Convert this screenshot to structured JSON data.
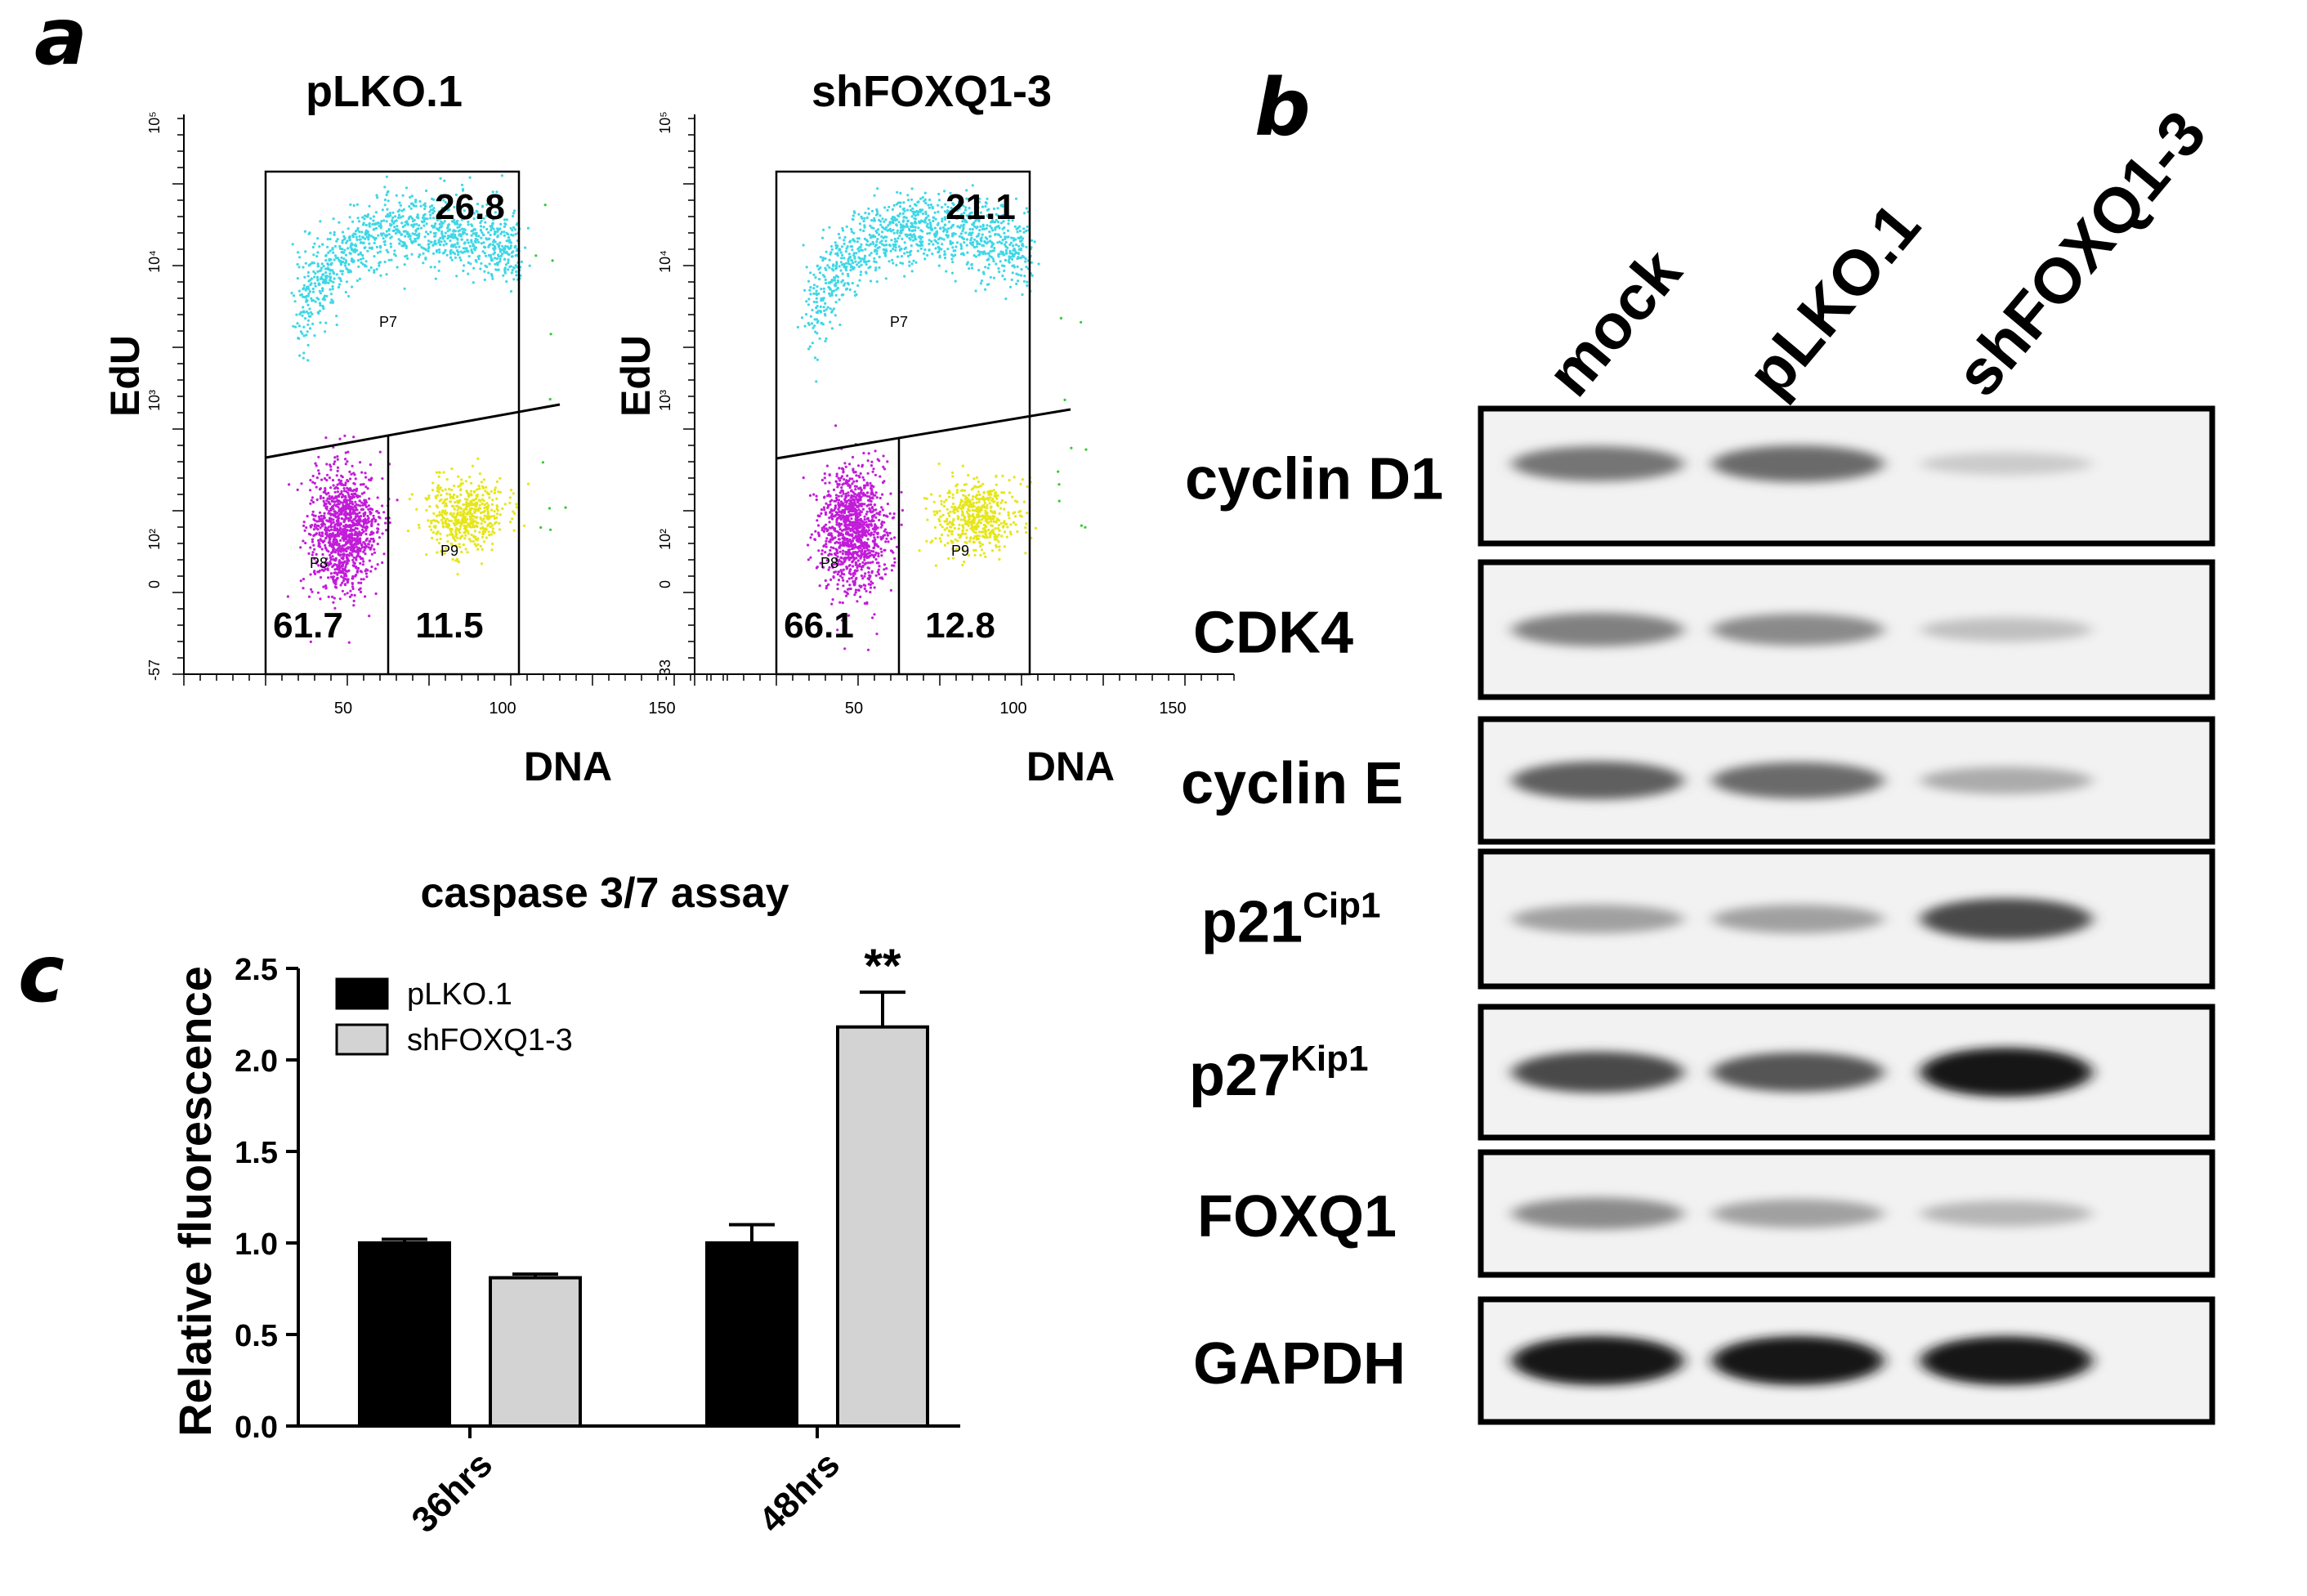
{
  "panel_labels": {
    "a": "a",
    "b": "b",
    "c": "c"
  },
  "flow": {
    "plots": [
      {
        "title": "pLKO.1",
        "xlabel": "DNA",
        "ylabel": "EdU",
        "x_ticks": [
          "50",
          "100",
          "150"
        ],
        "y_ticks": [
          "-57",
          "0",
          "10²",
          "10³",
          "10⁴",
          "10⁵"
        ],
        "gates": {
          "p7": "P7",
          "p8": "P8",
          "p9": "P9"
        },
        "percentages": {
          "edu_positive": "26.8",
          "g1": "61.7",
          "g2m": "11.5"
        },
        "boundary_y_left": 2.4,
        "boundary_y_right": 2.85,
        "divider_x": 70
      },
      {
        "title": "shFOXQ1-3",
        "xlabel": "DNA",
        "ylabel": "EdU",
        "x_ticks": [
          "50",
          "100",
          "150"
        ],
        "y_ticks": [
          "-33",
          "0",
          "10²",
          "10³",
          "10⁴",
          "10⁵"
        ],
        "gates": {
          "p7": "P7",
          "p8": "P8",
          "p9": "P9"
        },
        "percentages": {
          "edu_positive": "21.1",
          "g1": "66.1",
          "g2m": "12.8"
        },
        "boundary_y_left": 2.35,
        "boundary_y_right": 2.75,
        "divider_x": 70
      }
    ],
    "colors": {
      "edu": "#3fd7e6",
      "g1": "#c21cd9",
      "g2m": "#e6e61a",
      "outlier": "#33cc33"
    }
  },
  "western": {
    "lanes": [
      "mock",
      "pLKO.1",
      "shFOXQ1-3"
    ],
    "blots": [
      {
        "name": "cyclin D1",
        "sup": "",
        "intensity": [
          0.55,
          0.6,
          0.15
        ]
      },
      {
        "name": "CDK4",
        "sup": "",
        "intensity": [
          0.5,
          0.45,
          0.2
        ]
      },
      {
        "name": "cyclin E",
        "sup": "",
        "intensity": [
          0.65,
          0.6,
          0.3
        ]
      },
      {
        "name": "p21",
        "sup": "Cip1",
        "intensity": [
          0.35,
          0.35,
          0.75
        ]
      },
      {
        "name": "p27",
        "sup": "Kip1",
        "intensity": [
          0.75,
          0.7,
          1.0
        ]
      },
      {
        "name": "FOXQ1",
        "sup": "",
        "intensity": [
          0.45,
          0.35,
          0.25
        ]
      },
      {
        "name": "GAPDH",
        "sup": "",
        "intensity": [
          1.0,
          1.0,
          1.0
        ]
      }
    ]
  },
  "chart_data": {
    "type": "bar",
    "title": "caspase 3/7 assay",
    "xlabel": "",
    "ylabel": "Relative fluorescence",
    "categories": [
      "36hrs",
      "48hrs"
    ],
    "series": [
      {
        "name": "pLKO.1",
        "values": [
          1.0,
          1.0
        ],
        "errors": [
          0.02,
          0.1
        ],
        "color": "#000000"
      },
      {
        "name": "shFOXQ1-3",
        "values": [
          0.81,
          2.18
        ],
        "errors": [
          0.02,
          0.19
        ],
        "color": "#d3d3d3"
      }
    ],
    "ylim": [
      0,
      2.5
    ],
    "yticks": [
      "0.0",
      "0.5",
      "1.0",
      "1.5",
      "2.0",
      "2.5"
    ],
    "annotations": [
      {
        "category": "48hrs",
        "series": "shFOXQ1-3",
        "text": "**"
      }
    ],
    "legend": "top-left",
    "grid": false
  }
}
